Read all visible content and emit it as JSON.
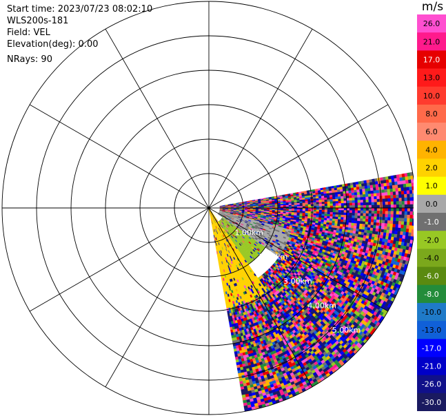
{
  "header": {
    "start_time": "Start time: 2023/07/23 08:02:10",
    "instrument": "WLS200s-181",
    "field": "Field: VEL",
    "elevation": "Elevation(deg): 0.00",
    "nrays": "NRays: 90"
  },
  "colorbar": {
    "unit": "m/s",
    "labels": [
      "26.0",
      "21.0",
      "17.0",
      "13.0",
      "10.0",
      "8.0",
      "6.0",
      "4.0",
      "2.0",
      "1.0",
      "0.0",
      "-1.0",
      "-2.0",
      "-4.0",
      "-6.0",
      "-8.0",
      "-10.0",
      "-13.0",
      "-17.0",
      "-21.0",
      "-26.0",
      "-30.0"
    ],
    "colors": [
      "#ff4fd0",
      "#ff1a8c",
      "#e60000",
      "#ff1a1a",
      "#ff3b2e",
      "#ff6a4a",
      "#ff8a70",
      "#ffb300",
      "#ffd200",
      "#ffff00",
      "#a8a8a8",
      "#707070",
      "#98c824",
      "#7ba81c",
      "#5a8a10",
      "#238c3a",
      "#1f7ac8",
      "#1060d8",
      "#0000ff",
      "#0000c8",
      "#10108a",
      "#1a1a60"
    ]
  },
  "chart_data": {
    "type": "heatmap",
    "projection": "polar-ppi",
    "range_unit": "km",
    "range_rings_km": [
      1,
      2,
      3,
      4,
      5,
      6
    ],
    "range_labels": [
      "1.00km",
      "2.00km",
      "3.00km",
      "4.00km",
      "5.00km"
    ],
    "spoke_step_deg": 30,
    "max_range_km": 6,
    "sector_azimuth_deg": [
      80,
      170
    ],
    "data_max_range_km": 6.0,
    "nrays": 90,
    "field": "VEL",
    "colorbar_range": [
      -30,
      26
    ],
    "regions": [
      {
        "azimuth_deg": [
          80,
          105
        ],
        "range_km": [
          0.3,
          6.0
        ],
        "dominant": "noise"
      },
      {
        "azimuth_deg": [
          105,
          125
        ],
        "range_km": [
          0.3,
          2.5
        ],
        "dominant": "0.0"
      },
      {
        "azimuth_deg": [
          125,
          145
        ],
        "range_km": [
          0.5,
          2.0
        ],
        "dominant": "-2.0"
      },
      {
        "azimuth_deg": [
          145,
          170
        ],
        "range_km": [
          0.0,
          3.0
        ],
        "dominant": "2.0"
      },
      {
        "azimuth_deg": [
          105,
          170
        ],
        "range_km": [
          2.5,
          6.0
        ],
        "dominant": "noise"
      }
    ]
  }
}
